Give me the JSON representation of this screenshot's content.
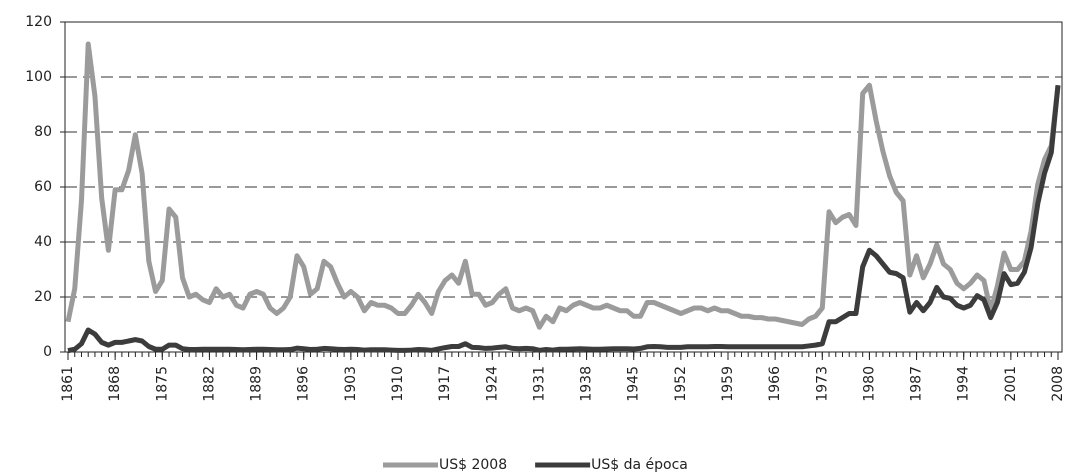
{
  "chart_data": {
    "type": "line",
    "x": [
      1861,
      1862,
      1863,
      1864,
      1865,
      1866,
      1867,
      1868,
      1869,
      1870,
      1871,
      1872,
      1873,
      1874,
      1875,
      1876,
      1877,
      1878,
      1879,
      1880,
      1881,
      1882,
      1883,
      1884,
      1885,
      1886,
      1887,
      1888,
      1889,
      1890,
      1891,
      1892,
      1893,
      1894,
      1895,
      1896,
      1897,
      1898,
      1899,
      1900,
      1901,
      1902,
      1903,
      1904,
      1905,
      1906,
      1907,
      1908,
      1909,
      1910,
      1911,
      1912,
      1913,
      1914,
      1915,
      1916,
      1917,
      1918,
      1919,
      1920,
      1921,
      1922,
      1923,
      1924,
      1925,
      1926,
      1927,
      1928,
      1929,
      1930,
      1931,
      1932,
      1933,
      1934,
      1935,
      1936,
      1937,
      1938,
      1939,
      1940,
      1941,
      1942,
      1943,
      1944,
      1945,
      1946,
      1947,
      1948,
      1949,
      1950,
      1951,
      1952,
      1953,
      1954,
      1955,
      1956,
      1957,
      1958,
      1959,
      1960,
      1961,
      1962,
      1963,
      1964,
      1965,
      1966,
      1967,
      1968,
      1969,
      1970,
      1971,
      1972,
      1973,
      1974,
      1975,
      1976,
      1977,
      1978,
      1979,
      1980,
      1981,
      1982,
      1983,
      1984,
      1985,
      1986,
      1987,
      1988,
      1989,
      1990,
      1991,
      1992,
      1993,
      1994,
      1995,
      1996,
      1997,
      1998,
      1999,
      2000,
      2001,
      2002,
      2003,
      2004,
      2005,
      2006,
      2007,
      2008
    ],
    "series": [
      {
        "name": "US$ 2008",
        "color": "#9b9b9b",
        "values": [
          11,
          23,
          55,
          112,
          93,
          56,
          37,
          59,
          59,
          66,
          79,
          65,
          33,
          22,
          26,
          52,
          49,
          27,
          20,
          21,
          19,
          18,
          23,
          20,
          21,
          17,
          16,
          21,
          22,
          21,
          16,
          14,
          16,
          20,
          35,
          31,
          21,
          23,
          33,
          31,
          25,
          20,
          22,
          20,
          15,
          18,
          17,
          17,
          16,
          14,
          14,
          17,
          21,
          18,
          14,
          22,
          26,
          28,
          25,
          33,
          21,
          21,
          17,
          18,
          21,
          23,
          16,
          15,
          16,
          15,
          9,
          13,
          11,
          16,
          15,
          17,
          18,
          17,
          16,
          16,
          17,
          16,
          15,
          15,
          13,
          13,
          18,
          18,
          17,
          16,
          15,
          14,
          15,
          16,
          16,
          15,
          16,
          15,
          15,
          14,
          13,
          13,
          12.5,
          12.5,
          12,
          12,
          11.5,
          11,
          10.5,
          10,
          12,
          13,
          16,
          51,
          47,
          49,
          50,
          46,
          94,
          97,
          84,
          73,
          64,
          58,
          55,
          28,
          35,
          27,
          32,
          39,
          32,
          30,
          25,
          23,
          25,
          28,
          26,
          15,
          24,
          36,
          30,
          30,
          33,
          44,
          61,
          70,
          75,
          97
        ]
      },
      {
        "name": "US$ da época",
        "color": "#3c3c3c",
        "values": [
          0.5,
          1,
          3,
          8,
          6.5,
          3.5,
          2.5,
          3.5,
          3.5,
          4,
          4.5,
          4,
          2,
          1,
          1,
          2.5,
          2.5,
          1.2,
          0.9,
          0.9,
          1,
          1,
          1,
          1,
          1,
          0.9,
          0.8,
          0.9,
          1,
          1,
          0.9,
          0.8,
          0.8,
          0.9,
          1.4,
          1.2,
          0.9,
          1,
          1.3,
          1.2,
          1,
          0.9,
          1,
          0.9,
          0.7,
          0.8,
          0.8,
          0.8,
          0.7,
          0.6,
          0.6,
          0.7,
          0.9,
          0.8,
          0.6,
          1.1,
          1.6,
          2,
          2,
          3,
          1.7,
          1.6,
          1.3,
          1.4,
          1.7,
          1.9,
          1.3,
          1.2,
          1.3,
          1.2,
          0.6,
          0.9,
          0.7,
          1,
          1,
          1.1,
          1.2,
          1.1,
          1,
          1,
          1.1,
          1.2,
          1.2,
          1.2,
          1.1,
          1.3,
          1.9,
          2,
          1.9,
          1.7,
          1.7,
          1.7,
          1.9,
          1.9,
          1.9,
          1.9,
          2,
          2,
          1.9,
          1.9,
          1.9,
          1.9,
          1.9,
          1.9,
          1.9,
          1.9,
          1.9,
          1.9,
          1.9,
          1.9,
          2.2,
          2.5,
          3,
          11,
          11,
          12.5,
          14,
          14,
          31,
          37,
          35,
          32,
          29,
          28.5,
          27,
          14.5,
          18,
          15,
          18,
          23.5,
          20,
          19.5,
          17,
          16,
          17,
          20.5,
          19,
          12.5,
          18,
          28.5,
          24.5,
          25,
          29,
          38,
          54,
          65,
          72.5,
          97
        ]
      }
    ],
    "xlim": [
      1861,
      2008
    ],
    "xticks": [
      1861,
      1868,
      1875,
      1882,
      1889,
      1896,
      1903,
      1910,
      1917,
      1924,
      1931,
      1938,
      1945,
      1952,
      1959,
      1966,
      1973,
      1980,
      1987,
      1994,
      2001,
      2008
    ],
    "ylim": [
      0,
      120
    ],
    "yticks": [
      0,
      20,
      40,
      60,
      80,
      100,
      120
    ],
    "grid": true
  }
}
